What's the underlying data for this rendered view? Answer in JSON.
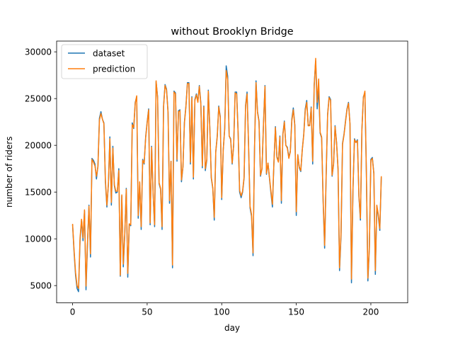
{
  "chart_data": {
    "type": "line",
    "title": "without Brooklyn Bridge",
    "xlabel": "day",
    "ylabel": "number of riders",
    "xlim": [
      -10.7,
      224.7
    ],
    "ylim": [
      3150,
      31150
    ],
    "xticks": [
      0,
      50,
      100,
      150,
      200
    ],
    "yticks": [
      5000,
      10000,
      15000,
      20000,
      25000,
      30000
    ],
    "legend_position": "upper-left",
    "grid": false,
    "series": [
      {
        "name": "dataset",
        "color": "#1f77b4",
        "values": [
          11500,
          8600,
          6100,
          4700,
          4350,
          9800,
          12000,
          9800,
          13000,
          4550,
          9400,
          13600,
          8050,
          18600,
          18400,
          18000,
          16400,
          17800,
          22900,
          23600,
          22800,
          22400,
          16100,
          13400,
          15800,
          20900,
          13600,
          19900,
          15700,
          14900,
          15000,
          17500,
          6000,
          14600,
          7000,
          10500,
          15400,
          5900,
          11600,
          11400,
          22400,
          21800,
          24600,
          25200,
          12200,
          16000,
          11000,
          18500,
          18000,
          20900,
          22500,
          23900,
          11500,
          19900,
          14800,
          11300,
          26800,
          25200,
          15900,
          15300,
          11000,
          24200,
          26500,
          26000,
          23600,
          13800,
          18300,
          6900,
          25800,
          25600,
          18300,
          23700,
          23800,
          16100,
          17700,
          22500,
          24200,
          26700,
          26700,
          18000,
          25200,
          16400,
          24900,
          25500,
          24700,
          26400,
          24500,
          17600,
          24200,
          17300,
          18400,
          25900,
          22000,
          16500,
          15400,
          12000,
          19300,
          21000,
          24200,
          23100,
          14200,
          19500,
          21800,
          28500,
          27400,
          21000,
          20700,
          18000,
          20000,
          25700,
          25700,
          21400,
          15000,
          14400,
          15000,
          16500,
          24300,
          25700,
          20000,
          13300,
          12400,
          8200,
          19800,
          26900,
          23600,
          22600,
          16700,
          17500,
          22300,
          26400,
          16900,
          18100,
          16500,
          14900,
          13400,
          18100,
          22000,
          18800,
          18300,
          21000,
          13800,
          21200,
          22600,
          20000,
          19800,
          18700,
          19400,
          22800,
          24000,
          22200,
          12500,
          19000,
          17600,
          17200,
          19500,
          21200,
          23900,
          24800,
          22100,
          22200,
          24100,
          18000,
          26500,
          29000,
          23900,
          26100,
          21300,
          20800,
          14000,
          9000,
          16500,
          23300,
          25200,
          24900,
          16700,
          18000,
          22100,
          20300,
          17400,
          6600,
          10300,
          20200,
          21200,
          22600,
          23900,
          24600,
          22300,
          5300,
          15200,
          20700,
          20300,
          20600,
          14500,
          12000,
          21700,
          25200,
          25600,
          17000,
          5500,
          9000,
          18500,
          18700,
          17000,
          6200,
          13500,
          12400,
          10900,
          16600
        ]
      },
      {
        "name": "prediction",
        "color": "#ff7f0e",
        "values": [
          11600,
          8800,
          6400,
          5000,
          4700,
          10100,
          12100,
          10100,
          13100,
          4950,
          9700,
          13500,
          8400,
          18500,
          18200,
          17800,
          16700,
          17700,
          22700,
          23400,
          22800,
          22300,
          16300,
          13600,
          15800,
          20700,
          13900,
          19700,
          15800,
          15100,
          15100,
          17300,
          6100,
          14700,
          7300,
          10600,
          15300,
          6300,
          11600,
          11500,
          22200,
          21900,
          24500,
          25300,
          12500,
          16100,
          11300,
          18400,
          18100,
          20800,
          22400,
          23800,
          11700,
          19800,
          14900,
          11500,
          26900,
          25100,
          16000,
          15400,
          11300,
          24100,
          26400,
          25900,
          23500,
          14100,
          18300,
          7200,
          25700,
          25500,
          18500,
          23600,
          23700,
          16300,
          17700,
          22400,
          24100,
          26600,
          26600,
          18200,
          25100,
          16600,
          24800,
          25400,
          24600,
          26300,
          24400,
          17800,
          24100,
          17500,
          18500,
          25800,
          21900,
          16600,
          15500,
          12300,
          19300,
          20900,
          24100,
          23000,
          14400,
          19500,
          21700,
          28000,
          27000,
          21000,
          20600,
          18100,
          20000,
          25600,
          25500,
          21300,
          15200,
          14600,
          15100,
          16600,
          24200,
          25500,
          20000,
          13500,
          12600,
          8500,
          19700,
          26700,
          23500,
          22500,
          16800,
          17500,
          22200,
          26300,
          17000,
          18100,
          16600,
          15100,
          13700,
          18200,
          21900,
          18700,
          18200,
          20900,
          14100,
          21100,
          22500,
          20000,
          19700,
          18600,
          19300,
          22600,
          23800,
          22100,
          12900,
          19000,
          17700,
          17300,
          19500,
          21100,
          23700,
          24600,
          22100,
          22100,
          24000,
          18300,
          26300,
          29300,
          24600,
          27100,
          21400,
          20900,
          14200,
          9300,
          16700,
          23200,
          25100,
          24800,
          16800,
          18000,
          22000,
          20300,
          17500,
          6900,
          10600,
          20100,
          21100,
          22500,
          23800,
          24500,
          22300,
          5700,
          15300,
          20600,
          20300,
          20500,
          14600,
          12200,
          21700,
          25100,
          25800,
          17100,
          5800,
          9200,
          18400,
          18600,
          17000,
          6600,
          13600,
          12600,
          11100,
          16700
        ]
      }
    ]
  }
}
